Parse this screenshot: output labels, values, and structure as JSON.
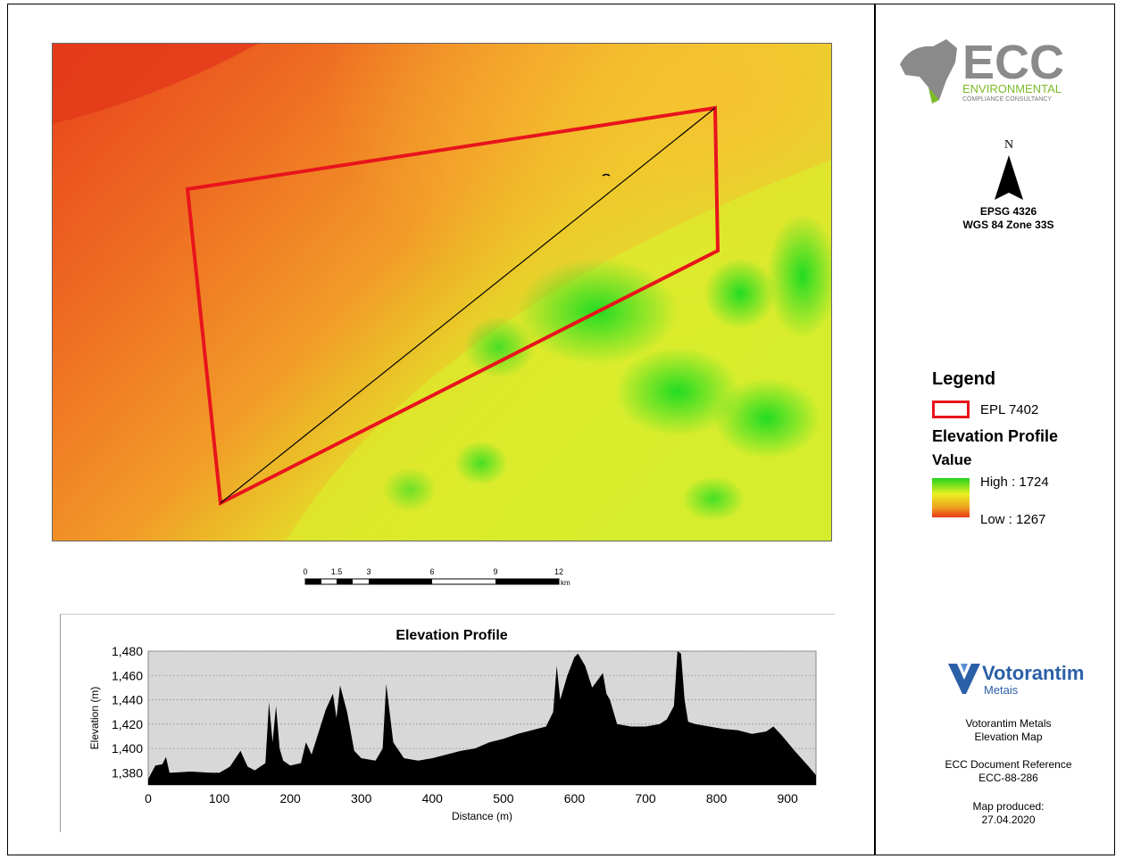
{
  "legend": {
    "title": "Legend",
    "epl_label": "EPL 7402",
    "profile_label": "Elevation Profile",
    "value_label": "Value",
    "high": "High : 1724",
    "low": "Low : 1267"
  },
  "north": {
    "letter": "N"
  },
  "crs": {
    "line1": "EPSG 4326",
    "line2": "WGS 84 Zone 33S"
  },
  "logos": {
    "ecc": {
      "big": "ECC",
      "line1": "ENVIRONMENTAL",
      "line2": "COMPLIANCE CONSULTANCY"
    },
    "voto": {
      "name": "Votorantim",
      "sub": "Metais"
    }
  },
  "info": {
    "company": "Votorantim Metals",
    "map_title": "Elevation Map",
    "ref_label": "ECC Document Reference",
    "ref_value": "ECC-88-286",
    "produced_label": "Map produced:",
    "produced_date": "27.04.2020"
  },
  "scale": {
    "ticks": [
      "0",
      "1.5",
      "3",
      "6",
      "9",
      "12"
    ],
    "unit": "km"
  },
  "colors": {
    "boundary": "#e8141c",
    "ecc_grey": "#8a8a8a",
    "ecc_green": "#7dbb2a",
    "voto_blue": "#2b5fa8"
  },
  "chart_data": {
    "type": "area",
    "title": "Elevation Profile",
    "xlabel": "Distance (m)",
    "ylabel": "Elevation (m)",
    "xlim": [
      0,
      940
    ],
    "ylim": [
      1370,
      1480
    ],
    "x_ticks": [
      "0",
      "100",
      "200",
      "300",
      "400",
      "500",
      "600",
      "700",
      "800",
      "900"
    ],
    "y_ticks": [
      "1,380",
      "1,400",
      "1,420",
      "1,440",
      "1,460",
      "1,480"
    ],
    "x": [
      0,
      10,
      20,
      25,
      30,
      60,
      90,
      100,
      115,
      130,
      140,
      150,
      165,
      170,
      175,
      180,
      185,
      190,
      200,
      215,
      222,
      230,
      250,
      260,
      265,
      270,
      280,
      290,
      300,
      320,
      330,
      335,
      345,
      360,
      380,
      400,
      420,
      440,
      460,
      480,
      500,
      520,
      540,
      560,
      570,
      575,
      580,
      590,
      600,
      605,
      615,
      625,
      640,
      645,
      650,
      660,
      680,
      700,
      720,
      730,
      740,
      745,
      750,
      755,
      760,
      770,
      790,
      810,
      830,
      850,
      870,
      880,
      890,
      900,
      910,
      930,
      940
    ],
    "y": [
      1375,
      1386,
      1387,
      1393,
      1380,
      1381,
      1380,
      1380,
      1385,
      1398,
      1385,
      1382,
      1388,
      1438,
      1405,
      1435,
      1400,
      1390,
      1386,
      1388,
      1405,
      1395,
      1432,
      1445,
      1425,
      1452,
      1430,
      1398,
      1392,
      1390,
      1400,
      1453,
      1405,
      1392,
      1390,
      1392,
      1395,
      1398,
      1400,
      1405,
      1408,
      1412,
      1415,
      1418,
      1430,
      1468,
      1440,
      1460,
      1475,
      1478,
      1468,
      1450,
      1462,
      1445,
      1440,
      1420,
      1418,
      1418,
      1420,
      1424,
      1435,
      1480,
      1478,
      1440,
      1422,
      1420,
      1418,
      1416,
      1415,
      1412,
      1414,
      1418,
      1412,
      1405,
      1398,
      1385,
      1378
    ]
  }
}
